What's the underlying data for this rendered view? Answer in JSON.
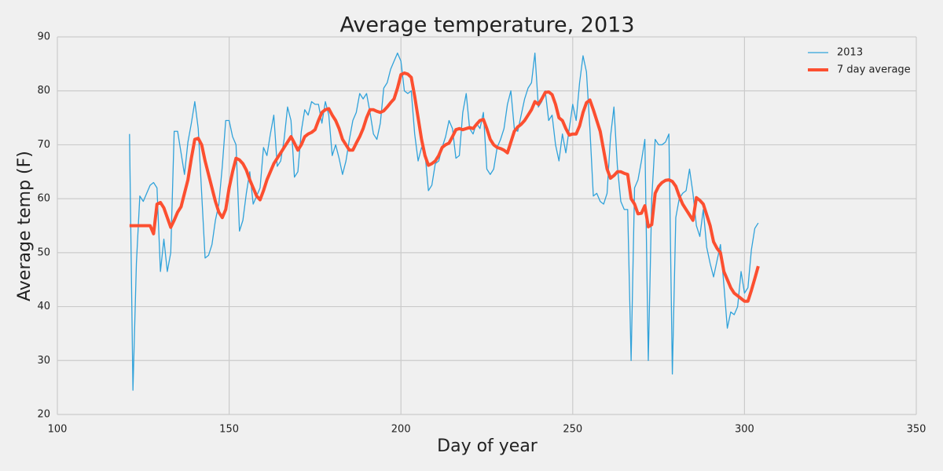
{
  "chart_data": {
    "type": "line",
    "title": "Average temperature, 2013",
    "xlabel": "Day of year",
    "ylabel": "Average temp (F)",
    "x": [
      121,
      122,
      123,
      124,
      125,
      126,
      127,
      128,
      129,
      130,
      131,
      132,
      133,
      134,
      135,
      136,
      137,
      138,
      139,
      140,
      141,
      142,
      143,
      144,
      145,
      146,
      147,
      148,
      149,
      150,
      151,
      152,
      153,
      154,
      155,
      156,
      157,
      158,
      159,
      160,
      161,
      162,
      163,
      164,
      165,
      166,
      167,
      168,
      169,
      170,
      171,
      172,
      173,
      174,
      175,
      176,
      177,
      178,
      179,
      180,
      181,
      182,
      183,
      184,
      185,
      186,
      187,
      188,
      189,
      190,
      191,
      192,
      193,
      194,
      195,
      196,
      197,
      198,
      199,
      200,
      201,
      202,
      203,
      204,
      205,
      206,
      207,
      208,
      209,
      210,
      211,
      212,
      213,
      214,
      215,
      216,
      217,
      218,
      219,
      220,
      221,
      222,
      223,
      224,
      225,
      226,
      227,
      228,
      229,
      230,
      231,
      232,
      233,
      234,
      235,
      236,
      237,
      238,
      239,
      240,
      241,
      242,
      243,
      244,
      245,
      246,
      247,
      248,
      249,
      250,
      251,
      252,
      253,
      254,
      255,
      256,
      257,
      258,
      259,
      260,
      261,
      262,
      263,
      264,
      265,
      266,
      267,
      268,
      269,
      270,
      271,
      272,
      273,
      274,
      275,
      276,
      277,
      278,
      279,
      280,
      281,
      282,
      283,
      284,
      285,
      286,
      287,
      288,
      289,
      290,
      291,
      292,
      293,
      294,
      295,
      296,
      297,
      298,
      299,
      300,
      301,
      302,
      303,
      304
    ],
    "series": [
      {
        "name": "2013",
        "color": "#30a2da",
        "width": 1.3,
        "values": [
          72,
          24.5,
          48,
          60.5,
          59.5,
          61,
          62.5,
          63,
          62,
          46.5,
          52.5,
          46.5,
          50,
          72.5,
          72.5,
          68.5,
          64.5,
          70.5,
          74,
          78,
          73,
          61,
          49,
          49.5,
          51.5,
          56,
          59,
          66,
          74.5,
          74.5,
          71.5,
          70,
          54,
          56,
          61,
          65,
          59,
          60.5,
          62,
          69.5,
          68,
          72,
          75.5,
          66,
          67,
          71,
          77,
          74.5,
          64,
          65,
          72.5,
          76.5,
          75.5,
          78,
          77.5,
          77.5,
          74,
          78,
          75.5,
          68,
          70,
          67.5,
          64.5,
          67,
          71,
          74.5,
          76,
          79.5,
          78.5,
          79.5,
          76,
          72,
          71,
          74,
          80.5,
          81.5,
          84,
          85.5,
          87,
          85.5,
          80,
          79.5,
          80,
          72,
          67,
          69.5,
          68.5,
          61.5,
          62.5,
          66.5,
          67,
          69.5,
          71.5,
          74.5,
          73,
          67.5,
          68,
          76,
          79.5,
          73,
          72,
          74,
          73,
          76,
          65.5,
          64.5,
          65.5,
          69.5,
          71,
          73,
          77.5,
          80,
          73,
          72.5,
          75.5,
          78.5,
          80.5,
          81.5,
          87,
          77,
          78,
          80,
          74.5,
          75.5,
          70,
          67,
          72,
          68.5,
          73,
          77.5,
          74.5,
          81.5,
          86.5,
          83.5,
          73,
          60.5,
          61,
          59.5,
          59,
          61,
          71.5,
          77,
          66,
          59.5,
          58,
          58,
          30,
          62,
          63.5,
          67,
          71,
          30,
          60,
          71,
          70,
          70,
          70.5,
          72,
          27.5,
          56.5,
          60,
          61,
          61.5,
          65.5,
          61,
          55,
          53,
          58,
          51,
          48,
          45.5,
          48.5,
          51.5,
          44,
          36,
          39,
          38.5,
          40,
          46.5,
          42.5,
          43.5,
          50.5,
          54.5,
          55.5
        ]
      },
      {
        "name": "7 day average",
        "color": "#fc4f30",
        "width": 4,
        "values": [
          55,
          55,
          55,
          55,
          55,
          55,
          55,
          53.5,
          59,
          59.3,
          58.3,
          56.5,
          54.7,
          56,
          57.5,
          58.5,
          61,
          63.5,
          67.5,
          71,
          71.2,
          70,
          67,
          64.5,
          62,
          59.5,
          57.5,
          56.5,
          58,
          62,
          65,
          67.5,
          67.2,
          66.5,
          65.3,
          63.5,
          62,
          60.5,
          59.8,
          61.5,
          63.5,
          65,
          66.5,
          67.5,
          68.5,
          69.5,
          70.5,
          71.5,
          70.3,
          69,
          70,
          71.5,
          72,
          72.3,
          72.8,
          74.5,
          76,
          76.5,
          76.7,
          75.5,
          74.5,
          73,
          71,
          70,
          69,
          69,
          70.3,
          71.5,
          73,
          75,
          76.5,
          76.5,
          76.2,
          76,
          76.3,
          77,
          77.8,
          78.5,
          80.5,
          83,
          83.3,
          83.1,
          82.5,
          79,
          75,
          71,
          68,
          66.2,
          66.5,
          67,
          68,
          69.5,
          70,
          70.3,
          71.5,
          72.8,
          73,
          72.8,
          73,
          73.2,
          73,
          73.8,
          74.5,
          74.7,
          73,
          71,
          70,
          69.5,
          69.3,
          69,
          68.5,
          70.5,
          72.5,
          73.3,
          73.8,
          74.5,
          75.5,
          76.5,
          78,
          77.5,
          78.5,
          79.7,
          79.8,
          79.3,
          77.5,
          75,
          74.5,
          73,
          71.8,
          72,
          72,
          73.5,
          76,
          77.8,
          78.3,
          76.5,
          74.5,
          72.5,
          69,
          65.5,
          63.8,
          64.3,
          65,
          65,
          64.7,
          64.5,
          60,
          59,
          57.2,
          57.3,
          58.7,
          54.8,
          55.2,
          61,
          62.3,
          63,
          63.4,
          63.5,
          63.2,
          62.3,
          60.5,
          59,
          58,
          57,
          56,
          60.2,
          59.7,
          59,
          57,
          55,
          52,
          50.8,
          50,
          46.5,
          45,
          43.5,
          42.5,
          42,
          41.5,
          41,
          41,
          43,
          45.2,
          47.5
        ]
      }
    ],
    "xlim": [
      100,
      350
    ],
    "xticks": [
      100,
      150,
      200,
      250,
      300,
      350
    ],
    "ylim": [
      20,
      90
    ],
    "yticks": [
      20,
      30,
      40,
      50,
      60,
      70,
      80,
      90
    ],
    "grid": true,
    "legend": "upper right"
  }
}
